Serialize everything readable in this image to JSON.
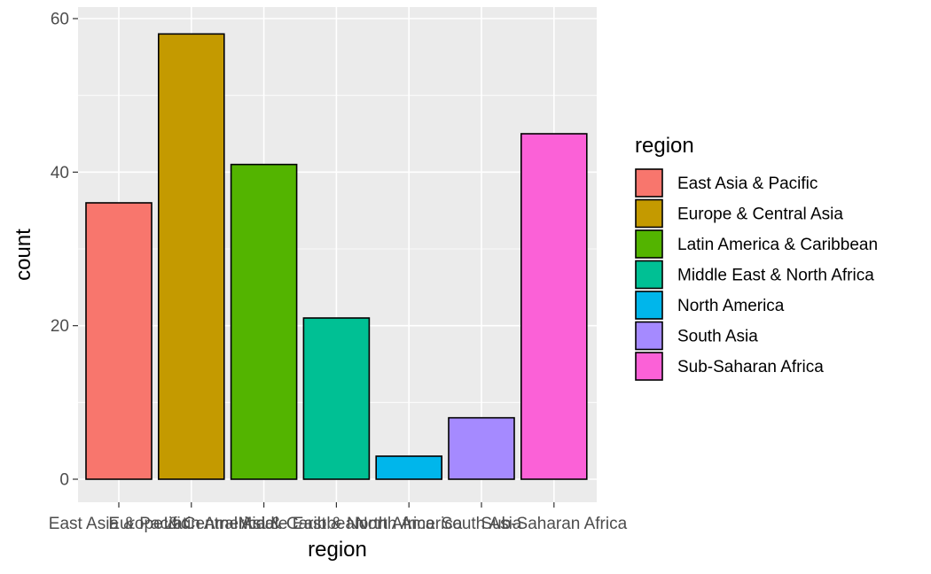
{
  "chart_data": {
    "type": "bar",
    "xlabel": "region",
    "ylabel": "count",
    "categories": [
      "East Asia & Pacific",
      "Europe & Central Asia",
      "Latin America & Caribbean",
      "Middle East & North Africa",
      "North America",
      "South Asia",
      "Sub-Saharan Africa"
    ],
    "values": [
      36,
      58,
      41,
      21,
      3,
      8,
      45
    ],
    "colors": [
      "#F8766D",
      "#C49A00",
      "#53B400",
      "#00C094",
      "#00B6EB",
      "#A58AFF",
      "#FB61D7"
    ],
    "ylim": [
      0,
      60
    ],
    "yticks": [
      0,
      20,
      40,
      60
    ],
    "ytick_labels": [
      "0",
      "20",
      "40",
      "60"
    ],
    "legend": {
      "title": "region",
      "placement": "right",
      "entries": [
        "East Asia & Pacific",
        "Europe & Central Asia",
        "Latin America & Caribbean",
        "Middle East & North Africa",
        "North America",
        "South Asia",
        "Sub-Saharan Africa"
      ]
    },
    "grid": true,
    "panel_background": "#EBEBEB",
    "bar_outline": "#000000"
  }
}
